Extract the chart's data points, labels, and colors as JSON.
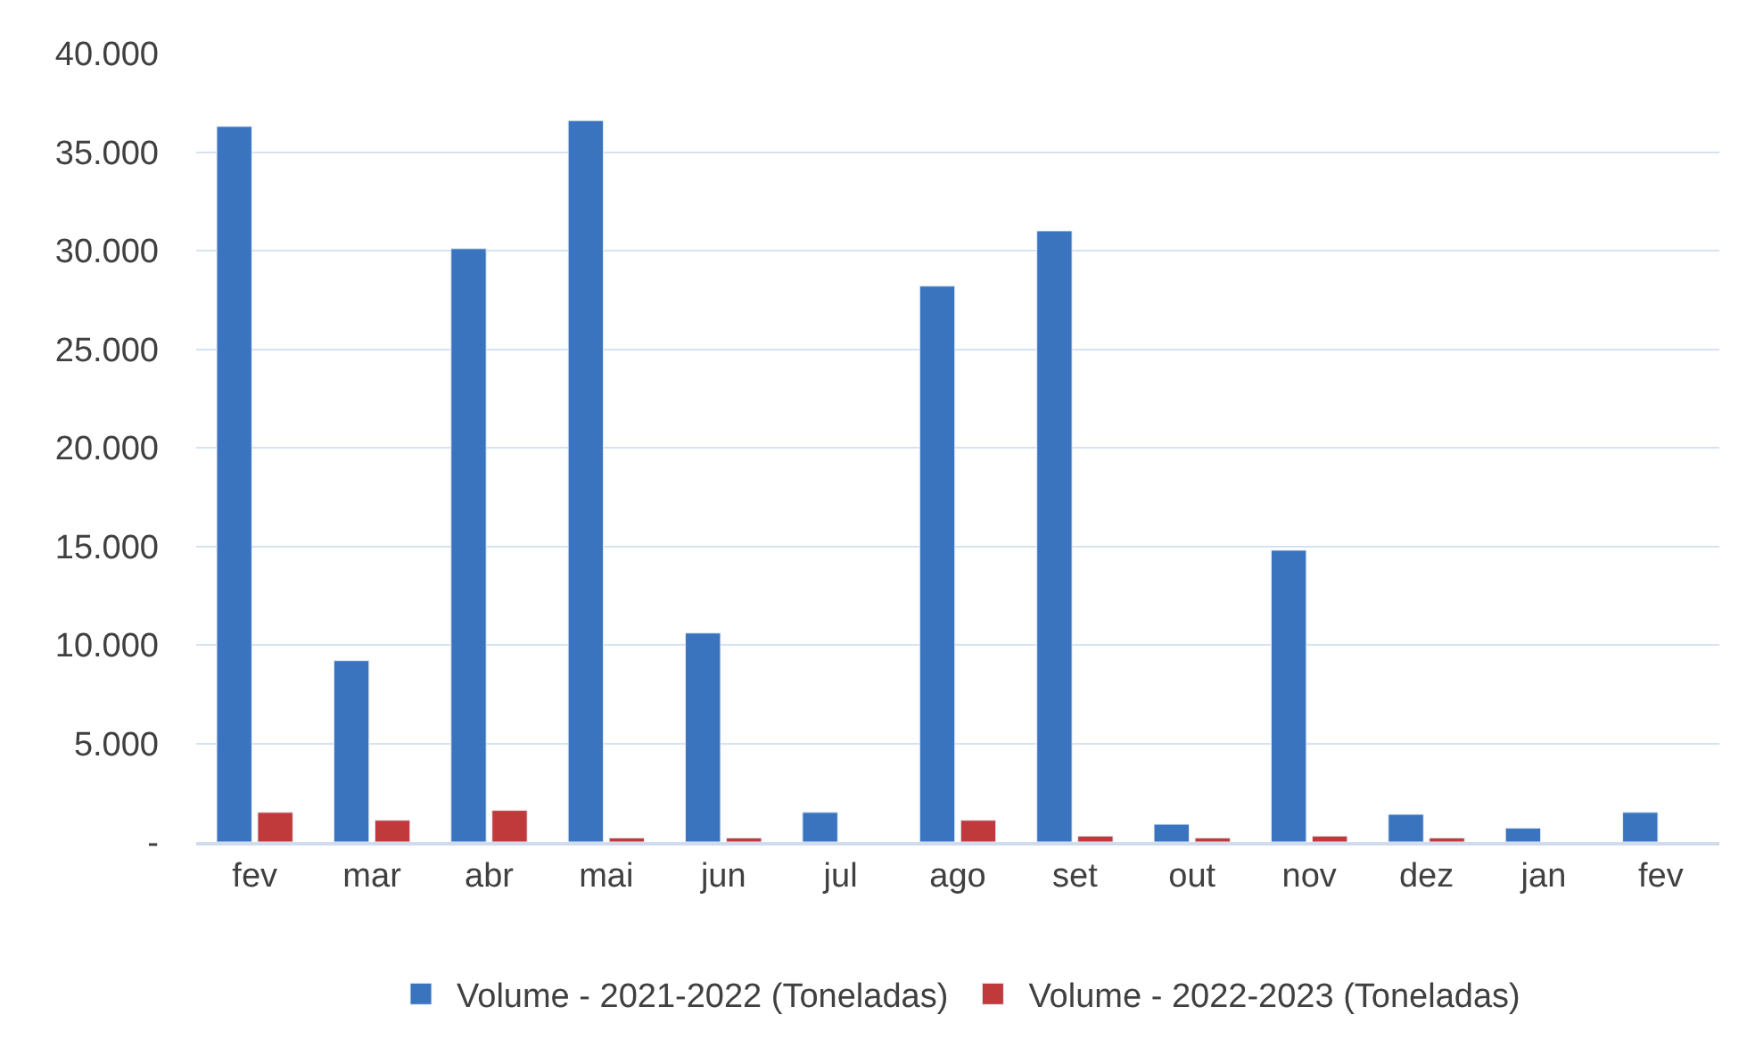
{
  "chart_data": {
    "type": "bar",
    "categories": [
      "fev",
      "mar",
      "abr",
      "mai",
      "jun",
      "jul",
      "ago",
      "set",
      "out",
      "nov",
      "dez",
      "jan",
      "fev"
    ],
    "series": [
      {
        "name": "Volume - 2021-2022 (Toneladas)",
        "color": "#3a74bf",
        "values": [
          36300,
          9200,
          30100,
          36600,
          10600,
          1500,
          28200,
          31000,
          900,
          14800,
          1400,
          700,
          1500
        ]
      },
      {
        "name": "Volume - 2022-2023 (Toneladas)",
        "color": "#c0393b",
        "values": [
          1500,
          1100,
          1600,
          200,
          200,
          null,
          1100,
          300,
          200,
          300,
          200,
          null,
          null
        ]
      }
    ],
    "ylim": [
      0,
      40000
    ],
    "yticks": [
      {
        "value": 0,
        "label": "-"
      },
      {
        "value": 5000,
        "label": "5.000"
      },
      {
        "value": 10000,
        "label": "10.000"
      },
      {
        "value": 15000,
        "label": "15.000"
      },
      {
        "value": 20000,
        "label": "20.000"
      },
      {
        "value": 25000,
        "label": "25.000"
      },
      {
        "value": 30000,
        "label": "30.000"
      },
      {
        "value": 35000,
        "label": "35.000"
      },
      {
        "value": 40000,
        "label": "40.000"
      }
    ],
    "grid": "y",
    "legend": "bottom"
  }
}
